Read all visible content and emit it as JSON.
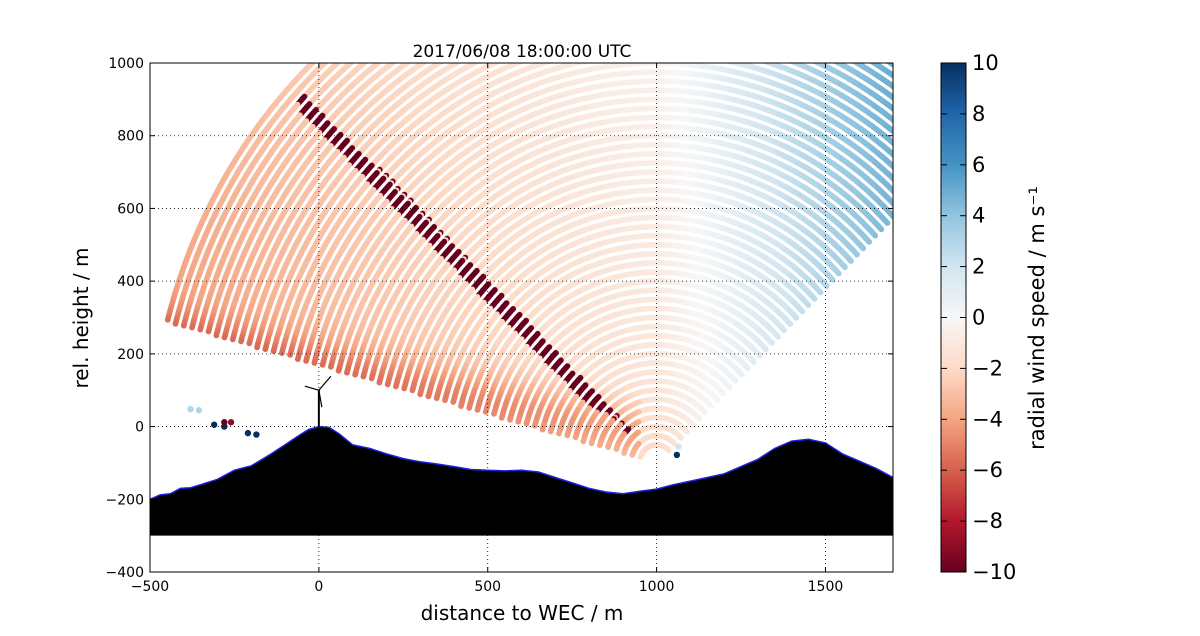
{
  "chart_data": {
    "type": "scatter",
    "title": "2017/06/08 18:00:00 UTC",
    "xlabel": "distance to WEC / m",
    "ylabel": "rel. height / m",
    "xlim": [
      -500,
      1700
    ],
    "ylim": [
      -400,
      1000
    ],
    "xticks": [
      -500,
      0,
      500,
      1000,
      1500
    ],
    "xtick_labels": [
      "−500",
      "0",
      "500",
      "1000",
      "1500"
    ],
    "yticks": [
      -400,
      -200,
      0,
      200,
      400,
      600,
      800,
      1000
    ],
    "ytick_labels": [
      "−400",
      "−200",
      "0",
      "200",
      "400",
      "600",
      "800",
      "1000"
    ],
    "grid": true,
    "colorbar": {
      "label": "radial wind speed / m s⁻¹",
      "range": [
        -10,
        10
      ],
      "ticks": [
        10,
        8,
        6,
        4,
        2,
        0,
        -2,
        -4,
        -6,
        -8,
        -10
      ],
      "tick_labels": [
        "10",
        "8",
        "6",
        "4",
        "2",
        "0",
        "−2",
        "−4",
        "−6",
        "−8",
        "−10"
      ],
      "colormap": [
        "#67001f",
        "#b2182b",
        "#d6604d",
        "#f4a582",
        "#fddbc7",
        "#f7f7f7",
        "#d1e5f0",
        "#92c5de",
        "#4393c3",
        "#2166ac",
        "#053061"
      ]
    },
    "scan": {
      "origin": [
        1000,
        -100
      ],
      "range_min": 50,
      "range_max": 1500,
      "range_step": 25,
      "elevation_min_deg": 44,
      "elevation_max_deg": 165
    },
    "terrain": [
      [
        -500,
        -200
      ],
      [
        -470,
        -188
      ],
      [
        -440,
        -185
      ],
      [
        -410,
        -170
      ],
      [
        -380,
        -168
      ],
      [
        -350,
        -160
      ],
      [
        -300,
        -145
      ],
      [
        -250,
        -120
      ],
      [
        -200,
        -108
      ],
      [
        -150,
        -80
      ],
      [
        -100,
        -50
      ],
      [
        -60,
        -25
      ],
      [
        -30,
        -8
      ],
      [
        0,
        0
      ],
      [
        30,
        -2
      ],
      [
        60,
        -20
      ],
      [
        100,
        -50
      ],
      [
        150,
        -60
      ],
      [
        200,
        -75
      ],
      [
        250,
        -88
      ],
      [
        300,
        -97
      ],
      [
        350,
        -103
      ],
      [
        400,
        -110
      ],
      [
        450,
        -118
      ],
      [
        500,
        -120
      ],
      [
        550,
        -122
      ],
      [
        600,
        -120
      ],
      [
        650,
        -125
      ],
      [
        700,
        -140
      ],
      [
        750,
        -155
      ],
      [
        800,
        -170
      ],
      [
        850,
        -180
      ],
      [
        900,
        -185
      ],
      [
        950,
        -178
      ],
      [
        1000,
        -172
      ],
      [
        1050,
        -160
      ],
      [
        1100,
        -150
      ],
      [
        1150,
        -140
      ],
      [
        1200,
        -130
      ],
      [
        1250,
        -110
      ],
      [
        1300,
        -90
      ],
      [
        1350,
        -60
      ],
      [
        1400,
        -40
      ],
      [
        1450,
        -35
      ],
      [
        1500,
        -45
      ],
      [
        1550,
        -75
      ],
      [
        1600,
        -95
      ],
      [
        1650,
        -115
      ],
      [
        1700,
        -140
      ]
    ],
    "terrain_base": -300,
    "turbine_position": [
      0,
      0
    ],
    "hub_height": 100,
    "isolated_points": [
      {
        "x": -310,
        "y": 5,
        "v": 10
      },
      {
        "x": -280,
        "y": 0,
        "v": 10
      },
      {
        "x": -280,
        "y": 12,
        "v": -10
      },
      {
        "x": -210,
        "y": -18,
        "v": 10
      },
      {
        "x": -185,
        "y": -22,
        "v": 10
      },
      {
        "x": -260,
        "y": 12,
        "v": -9
      },
      {
        "x": 1060,
        "y": -78,
        "v": 10
      },
      {
        "x": 1065,
        "y": -55,
        "v": 2
      },
      {
        "x": -380,
        "y": 48,
        "v": 3
      },
      {
        "x": -355,
        "y": 45,
        "v": 3
      }
    ]
  }
}
